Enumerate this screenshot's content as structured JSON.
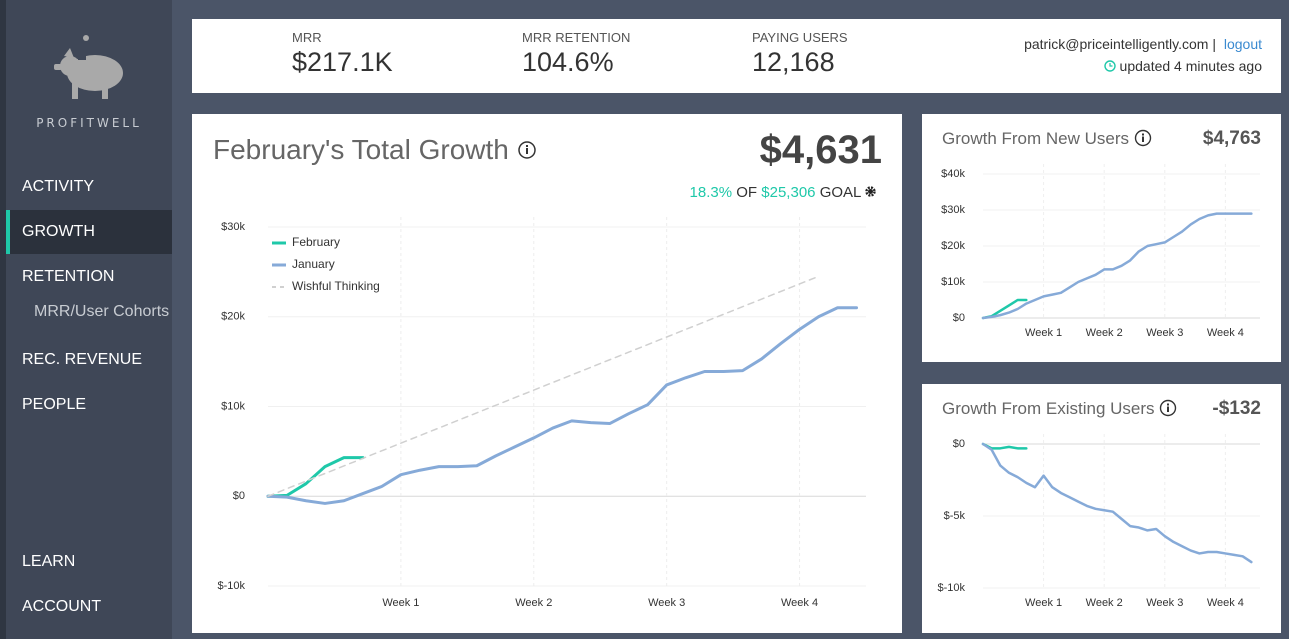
{
  "sidebar": {
    "brand": "PROFITWELL",
    "nav": [
      {
        "label": "ACTIVITY"
      },
      {
        "label": "GROWTH",
        "active": true
      },
      {
        "label": "RETENTION"
      },
      {
        "label": "MRR/User Cohorts",
        "sub": true
      },
      {
        "label": "REC. REVENUE"
      },
      {
        "label": "PEOPLE"
      }
    ],
    "bottom_nav": [
      {
        "label": "LEARN"
      },
      {
        "label": "ACCOUNT"
      }
    ]
  },
  "header": {
    "metrics": [
      {
        "label": "MRR",
        "value": "$217.1K"
      },
      {
        "label": "MRR RETENTION",
        "value": "104.6%"
      },
      {
        "label": "PAYING USERS",
        "value": "12,168"
      }
    ],
    "user": "patrick@priceintelligently.com",
    "separator": "|",
    "logout": "logout",
    "updated": "updated 4 minutes ago"
  },
  "chart_data": [
    {
      "type": "line",
      "title": "February's Total Growth",
      "total": "$4,631",
      "goal": {
        "percent": "18.3%",
        "of": "OF",
        "amount": "$25,306",
        "word": "GOAL"
      },
      "xlim": [
        0,
        31.5
      ],
      "xticks": [
        {
          "value": 7,
          "label": "Week 1"
        },
        {
          "value": 14,
          "label": "Week 2"
        },
        {
          "value": 21,
          "label": "Week 3"
        },
        {
          "value": 28,
          "label": "Week 4"
        }
      ],
      "ylim": [
        -10000,
        30000
      ],
      "yticks": [
        {
          "value": -10000,
          "label": "$-10k"
        },
        {
          "value": 0,
          "label": "$0"
        },
        {
          "value": 10000,
          "label": "$10k"
        },
        {
          "value": 20000,
          "label": "$20k"
        },
        {
          "value": 30000,
          "label": "$30k"
        }
      ],
      "grid": true,
      "legend": "top-left",
      "series": [
        {
          "name": "February",
          "color": "#1fc8a9",
          "x": [
            0,
            1,
            2,
            3,
            4,
            5
          ],
          "values": [
            0,
            100,
            1400,
            3300,
            4300,
            4300
          ]
        },
        {
          "name": "January",
          "color": "#86aad8",
          "x": [
            0,
            1,
            2,
            3,
            4,
            5,
            6,
            7,
            8,
            9,
            10,
            11,
            12,
            13,
            14,
            15,
            16,
            17,
            18,
            19,
            20,
            21,
            22,
            23,
            24,
            25,
            26,
            27,
            28,
            29,
            30,
            31
          ],
          "values": [
            0,
            -100,
            -500,
            -800,
            -500,
            300,
            1100,
            2400,
            2900,
            3300,
            3300,
            3400,
            4500,
            5500,
            6500,
            7600,
            8400,
            8200,
            8100,
            9200,
            10200,
            12400,
            13200,
            13900,
            13900,
            14000,
            15300,
            17000,
            18600,
            20000,
            21000,
            21000
          ]
        },
        {
          "name": "Wishful Thinking",
          "color": "#d0d0d0",
          "style": "dashed",
          "x": [
            0,
            29
          ],
          "values": [
            0,
            24500
          ]
        }
      ]
    },
    {
      "type": "line",
      "title": "Growth From New Users",
      "total": "$4,763",
      "xlim": [
        0,
        32
      ],
      "xticks": [
        {
          "value": 7,
          "label": "Week 1"
        },
        {
          "value": 14,
          "label": "Week 2"
        },
        {
          "value": 21,
          "label": "Week 3"
        },
        {
          "value": 28,
          "label": "Week 4"
        }
      ],
      "ylim": [
        0,
        40000
      ],
      "yticks": [
        {
          "value": 0,
          "label": "$0"
        },
        {
          "value": 10000,
          "label": "$10k"
        },
        {
          "value": 20000,
          "label": "$20k"
        },
        {
          "value": 30000,
          "label": "$30k"
        },
        {
          "value": 40000,
          "label": "$40k"
        }
      ],
      "grid": true,
      "series": [
        {
          "color": "#1fc8a9",
          "x": [
            0,
            1,
            2,
            3,
            4,
            5
          ],
          "values": [
            0,
            500,
            2000,
            3500,
            5000,
            5000
          ]
        },
        {
          "color": "#86aad8",
          "x": [
            0,
            1,
            2,
            3,
            4,
            5,
            6,
            7,
            8,
            9,
            10,
            11,
            12,
            13,
            14,
            15,
            16,
            17,
            18,
            19,
            20,
            21,
            22,
            23,
            24,
            25,
            26,
            27,
            28,
            29,
            30,
            31
          ],
          "values": [
            0,
            300,
            800,
            1500,
            2500,
            4000,
            5000,
            6000,
            6500,
            7000,
            8500,
            10000,
            11000,
            12000,
            13500,
            13500,
            14500,
            16000,
            18500,
            20000,
            20500,
            21000,
            22500,
            24000,
            26000,
            27500,
            28500,
            29000,
            29000,
            29000,
            29000,
            29000
          ]
        }
      ]
    },
    {
      "type": "line",
      "title": "Growth From Existing Users",
      "total": "-$132",
      "xlim": [
        0,
        32
      ],
      "xticks": [
        {
          "value": 7,
          "label": "Week 1"
        },
        {
          "value": 14,
          "label": "Week 2"
        },
        {
          "value": 21,
          "label": "Week 3"
        },
        {
          "value": 28,
          "label": "Week 4"
        }
      ],
      "ylim": [
        -10000,
        0
      ],
      "yticks": [
        {
          "value": -10000,
          "label": "$-10k"
        },
        {
          "value": -5000,
          "label": "$-5k"
        },
        {
          "value": 0,
          "label": "$0"
        }
      ],
      "grid": true,
      "series": [
        {
          "color": "#1fc8a9",
          "x": [
            0,
            1,
            2,
            3,
            4,
            5
          ],
          "values": [
            0,
            -300,
            -300,
            -200,
            -300,
            -300
          ]
        },
        {
          "color": "#86aad8",
          "x": [
            0,
            1,
            2,
            3,
            4,
            5,
            6,
            7,
            8,
            9,
            10,
            11,
            12,
            13,
            14,
            15,
            16,
            17,
            18,
            19,
            20,
            21,
            22,
            23,
            24,
            25,
            26,
            27,
            28,
            29,
            30,
            31
          ],
          "values": [
            0,
            -400,
            -1500,
            -2000,
            -2300,
            -2700,
            -3000,
            -2200,
            -3000,
            -3400,
            -3700,
            -4000,
            -4300,
            -4500,
            -4600,
            -4700,
            -5200,
            -5700,
            -5800,
            -6000,
            -5900,
            -6400,
            -6800,
            -7100,
            -7400,
            -7600,
            -7500,
            -7500,
            -7600,
            -7700,
            -7800,
            -8200
          ]
        }
      ]
    }
  ]
}
